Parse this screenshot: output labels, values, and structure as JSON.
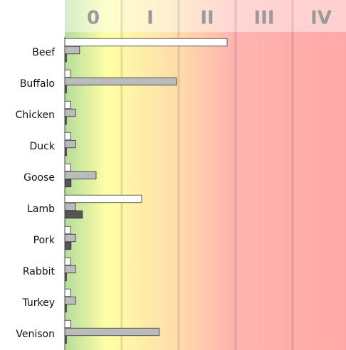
{
  "chart_data": {
    "type": "hbar",
    "categories": [
      "Beef",
      "Buffalo",
      "Chicken",
      "Duck",
      "Goose",
      "Lamb",
      "Pork",
      "Rabbit",
      "Turkey",
      "Venison"
    ],
    "zones": [
      "0",
      "I",
      "II",
      "III",
      "IV"
    ],
    "xlim": [
      0,
      5
    ],
    "xticks": [
      1,
      2,
      3,
      4
    ],
    "grid": true,
    "series": [
      {
        "color": "#ffffff",
        "values": [
          2.85,
          0.1,
          0.1,
          0.1,
          0.1,
          1.35,
          0.1,
          0.1,
          0.1,
          0.1
        ]
      },
      {
        "color": "#bbbbbb",
        "values": [
          0.26,
          1.96,
          0.19,
          0.19,
          0.55,
          0.19,
          0.19,
          0.19,
          0.19,
          1.66
        ]
      },
      {
        "color": "#555555",
        "values": [
          0.03,
          0.03,
          0.03,
          0.03,
          0.11,
          0.31,
          0.11,
          0.03,
          0.03,
          0.03
        ]
      }
    ]
  }
}
